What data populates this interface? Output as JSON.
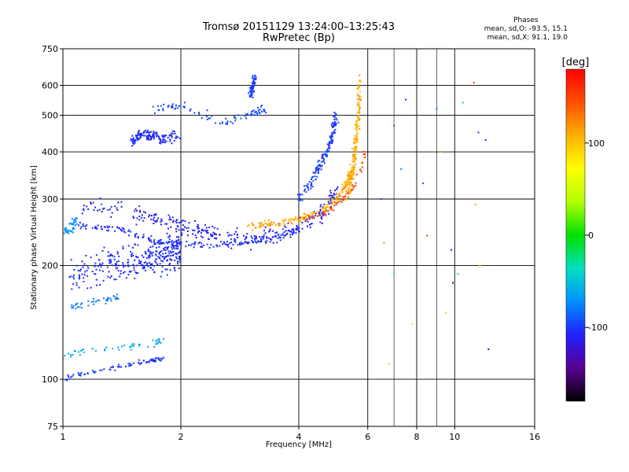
{
  "header": {
    "title_line1": "Tromsø 20151129 13:24:00–13:25:43",
    "title_line2": "RwPretec (Bp)",
    "phase_heading": "Phases",
    "phase_o": "mean, sd,O: -93.5, 15.1",
    "phase_x": "mean, sd,X: 91.1, 19.0"
  },
  "chart_data": {
    "type": "scatter",
    "xlabel": "Frequency [MHz]",
    "ylabel": "Stationary phase Virtual Height [km]",
    "x_scale": "log2",
    "y_scale": "log",
    "xlim": [
      1,
      16
    ],
    "ylim": [
      75,
      750
    ],
    "x_ticks": [
      1,
      2,
      4,
      6,
      8,
      10,
      16
    ],
    "x_minor_gridlines": [
      6,
      7,
      8,
      9,
      10
    ],
    "y_ticks": [
      75,
      100,
      200,
      300,
      400,
      500,
      600,
      750
    ],
    "grid": true,
    "colorbar": {
      "label": "[deg]",
      "range": [
        -180,
        180
      ],
      "ticks": [
        100,
        0,
        -100
      ],
      "colormap": [
        "#000000",
        "#5a0090",
        "#2020ff",
        "#0090ff",
        "#00e0c0",
        "#00e000",
        "#b0ff00",
        "#ffff00",
        "#ffb000",
        "#ff5000",
        "#ff0000"
      ]
    },
    "series": [
      {
        "trace": [
          [
            1.0,
            100
          ],
          [
            1.1,
            103
          ],
          [
            1.3,
            106
          ],
          [
            1.5,
            110
          ],
          [
            1.7,
            112
          ],
          [
            1.8,
            113
          ]
        ],
        "phase": -100,
        "spread": 5,
        "scatter": 0.02,
        "count": 80
      },
      {
        "trace": [
          [
            1.0,
            115
          ],
          [
            1.1,
            118
          ],
          [
            1.3,
            120
          ],
          [
            1.5,
            122
          ],
          [
            1.7,
            125
          ],
          [
            1.8,
            126
          ]
        ],
        "phase": -60,
        "spread": 5,
        "scatter": 0.03,
        "count": 50
      },
      {
        "trace": [
          [
            1.05,
            190
          ],
          [
            1.3,
            200
          ],
          [
            1.6,
            205
          ],
          [
            1.8,
            215
          ],
          [
            2.0,
            220
          ]
        ],
        "phase": -105,
        "spread": 6,
        "scatter": 0.16,
        "count": 320
      },
      {
        "trace": [
          [
            1.0,
            240
          ],
          [
            1.05,
            250
          ],
          [
            1.08,
            265
          ]
        ],
        "phase": -70,
        "spread": 4,
        "scatter": 0.04,
        "count": 40
      },
      {
        "trace": [
          [
            1.05,
            155
          ],
          [
            1.2,
            160
          ],
          [
            1.4,
            165
          ]
        ],
        "phase": -80,
        "spread": 4,
        "scatter": 0.03,
        "count": 40
      },
      {
        "trace": [
          [
            1.1,
            290
          ],
          [
            1.5,
            280
          ],
          [
            1.8,
            260
          ],
          [
            2.2,
            250
          ],
          [
            2.5,
            240
          ],
          [
            3.0,
            235
          ],
          [
            3.5,
            240
          ],
          [
            4.0,
            255
          ],
          [
            4.5,
            270
          ],
          [
            4.8,
            290
          ],
          [
            5.0,
            320
          ]
        ],
        "phase": -110,
        "spread": 7,
        "scatter": 0.08,
        "count": 320
      },
      {
        "trace": [
          [
            1.1,
            255
          ],
          [
            1.4,
            250
          ],
          [
            1.7,
            232
          ],
          [
            2.0,
            228
          ],
          [
            2.5,
            226
          ],
          [
            3.0,
            232
          ],
          [
            3.5,
            238
          ],
          [
            4.0,
            248
          ]
        ],
        "phase": -105,
        "spread": 8,
        "scatter": 0.03,
        "count": 180
      },
      {
        "trace": [
          [
            4.0,
            300
          ],
          [
            4.3,
            330
          ],
          [
            4.6,
            380
          ],
          [
            4.8,
            420
          ],
          [
            4.9,
            460
          ],
          [
            5.0,
            500
          ]
        ],
        "phase": -100,
        "spread": 8,
        "scatter": 0.06,
        "count": 150
      },
      {
        "trace": [
          [
            3.0,
            255
          ],
          [
            3.5,
            258
          ],
          [
            4.0,
            265
          ],
          [
            4.5,
            275
          ],
          [
            5.0,
            300
          ],
          [
            5.3,
            330
          ],
          [
            5.5,
            360
          ]
        ],
        "phase": 110,
        "spread": 12,
        "scatter": 0.03,
        "count": 200
      },
      {
        "trace": [
          [
            5.3,
            300
          ],
          [
            5.5,
            360
          ],
          [
            5.6,
            430
          ],
          [
            5.7,
            520
          ],
          [
            5.7,
            620
          ]
        ],
        "phase": 110,
        "spread": 12,
        "scatter": 0.05,
        "count": 170
      },
      {
        "trace": [
          [
            4.0,
            265
          ],
          [
            4.5,
            270
          ],
          [
            5.0,
            290
          ],
          [
            5.5,
            320
          ],
          [
            5.8,
            360
          ],
          [
            5.9,
            400
          ]
        ],
        "phase": 150,
        "spread": 10,
        "scatter": 0.02,
        "count": 60
      },
      {
        "trace": [
          [
            1.5,
            430
          ],
          [
            1.6,
            445
          ],
          [
            1.7,
            440
          ],
          [
            1.8,
            435
          ],
          [
            2.0,
            440
          ]
        ],
        "phase": -105,
        "spread": 6,
        "scatter": 0.05,
        "count": 140
      },
      {
        "trace": [
          [
            1.7,
            520
          ],
          [
            2.0,
            530
          ],
          [
            2.5,
            480
          ],
          [
            3.0,
            500
          ],
          [
            3.3,
            520
          ]
        ],
        "phase": -95,
        "spread": 6,
        "scatter": 0.04,
        "count": 90
      },
      {
        "trace": [
          [
            3.0,
            560
          ],
          [
            3.05,
            600
          ],
          [
            3.1,
            640
          ]
        ],
        "phase": -100,
        "spread": 6,
        "scatter": 0.04,
        "count": 60
      }
    ],
    "outliers": [
      [
        6.5,
        300,
        -100
      ],
      [
        6.6,
        230,
        120
      ],
      [
        7.0,
        470,
        -90
      ],
      [
        7.0,
        190,
        -40
      ],
      [
        7.5,
        550,
        -100
      ],
      [
        7.8,
        140,
        40
      ],
      [
        8.3,
        330,
        -90
      ],
      [
        8.5,
        240,
        150
      ],
      [
        9.0,
        520,
        -80
      ],
      [
        9.2,
        400,
        110
      ],
      [
        9.5,
        150,
        100
      ],
      [
        9.8,
        220,
        -120
      ],
      [
        10.2,
        190,
        -20
      ],
      [
        10.5,
        540,
        -30
      ],
      [
        11.2,
        610,
        160
      ],
      [
        11.3,
        290,
        120
      ],
      [
        11.5,
        450,
        -100
      ],
      [
        12.0,
        430,
        -110
      ],
      [
        12.2,
        120,
        -130
      ],
      [
        11.6,
        200,
        60
      ],
      [
        6.8,
        110,
        30
      ],
      [
        7.3,
        360,
        -70
      ],
      [
        9.9,
        180,
        -150
      ]
    ]
  }
}
